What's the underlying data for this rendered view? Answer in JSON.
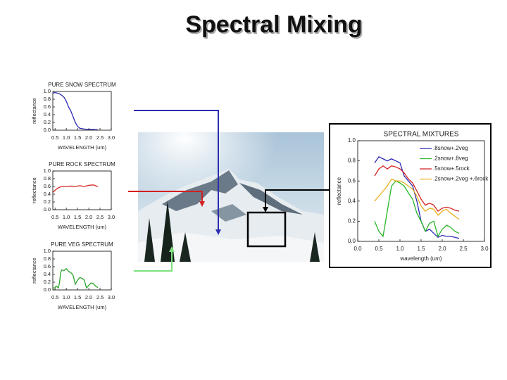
{
  "title": "Spectral Mixing",
  "chart_data": [
    {
      "type": "line",
      "title": "PURE SNOW SPECTRUM",
      "y_label": "reflectance",
      "x_label": "WAVELENGTH (um)",
      "x": [
        0.4,
        0.5,
        0.6,
        0.7,
        0.8,
        0.9,
        1.0,
        1.1,
        1.2,
        1.3,
        1.4,
        1.5,
        1.6,
        1.8,
        2.0,
        2.2,
        2.4
      ],
      "values": [
        0.96,
        0.97,
        0.96,
        0.94,
        0.9,
        0.85,
        0.75,
        0.6,
        0.5,
        0.35,
        0.2,
        0.1,
        0.05,
        0.03,
        0.02,
        0.02,
        0.01
      ],
      "color": "#2b2bb0",
      "xlim": [
        0.4,
        3.0
      ],
      "xticks": [
        0.5,
        {
          "value": 1.0,
          "label": "1.0"
        },
        1.5,
        {
          "value": 2.0,
          "label": "2.0"
        },
        2.5,
        {
          "value": 3.0,
          "label": "3.0"
        }
      ],
      "ylim": [
        0.0,
        1.0
      ],
      "yticks": [
        {
          "value": 0.0,
          "label": "0.0"
        },
        0.2,
        0.4,
        0.6,
        0.8,
        {
          "value": 1.0,
          "label": "1.0"
        }
      ]
    },
    {
      "type": "line",
      "title": "PURE ROCK SPECTRUM",
      "y_label": "reflectance",
      "x_label": "WAVELENGTH (um)",
      "x": [
        0.4,
        0.5,
        0.6,
        0.7,
        0.8,
        1.0,
        1.2,
        1.4,
        1.6,
        1.8,
        2.0,
        2.2,
        2.4
      ],
      "values": [
        0.45,
        0.5,
        0.55,
        0.58,
        0.6,
        0.6,
        0.61,
        0.6,
        0.62,
        0.6,
        0.63,
        0.64,
        0.6
      ],
      "color": "#d42020",
      "xlim": [
        0.4,
        3.0
      ],
      "xticks": [
        0.5,
        {
          "value": 1.0,
          "label": "1.0"
        },
        1.5,
        {
          "value": 2.0,
          "label": "2.0"
        },
        2.5,
        {
          "value": 3.0,
          "label": "3.0"
        }
      ],
      "ylim": [
        0.0,
        1.0
      ],
      "yticks": [
        {
          "value": 0.0,
          "label": "0.0"
        },
        0.2,
        0.4,
        0.6,
        0.8,
        {
          "value": 1.0,
          "label": "1.0"
        }
      ]
    },
    {
      "type": "line",
      "title": "PURE VEG SPECTRUM",
      "y_label": "reflectance",
      "x_label": "WAVELENGTH (um)",
      "x": [
        0.4,
        0.5,
        0.55,
        0.65,
        0.7,
        0.75,
        0.8,
        0.9,
        1.0,
        1.1,
        1.2,
        1.3,
        1.4,
        1.5,
        1.6,
        1.7,
        1.8,
        1.9,
        2.0,
        2.1,
        2.2,
        2.3,
        2.4
      ],
      "values": [
        0.04,
        0.06,
        0.1,
        0.05,
        0.2,
        0.45,
        0.52,
        0.5,
        0.55,
        0.48,
        0.45,
        0.38,
        0.15,
        0.25,
        0.32,
        0.3,
        0.25,
        0.05,
        0.12,
        0.18,
        0.16,
        0.1,
        0.06
      ],
      "color": "#2aa52a",
      "xlim": [
        0.4,
        3.0
      ],
      "xticks": [
        0.5,
        {
          "value": 1.0,
          "label": "1.0"
        },
        1.5,
        {
          "value": 2.0,
          "label": "2.0"
        },
        2.5,
        {
          "value": 3.0,
          "label": "3.0"
        }
      ],
      "ylim": [
        0.0,
        1.0
      ],
      "yticks": [
        {
          "value": 0.0,
          "label": "0.0"
        },
        0.2,
        0.4,
        0.6,
        0.8,
        {
          "value": 1.0,
          "label": "1.0"
        }
      ]
    },
    {
      "type": "line",
      "title": "SPECTRAL MIXTURES",
      "y_label": "reflectance",
      "x_label": "wavelength (um)",
      "x": [
        0.4,
        0.5,
        0.6,
        0.7,
        0.8,
        0.9,
        1.0,
        1.1,
        1.2,
        1.3,
        1.4,
        1.5,
        1.6,
        1.7,
        1.8,
        1.9,
        2.0,
        2.1,
        2.2,
        2.3,
        2.4
      ],
      "series": [
        {
          "name": ".8snow+.2veg",
          "color": "#2b2bb0",
          "values": [
            0.78,
            0.84,
            0.82,
            0.8,
            0.82,
            0.8,
            0.78,
            0.65,
            0.6,
            0.55,
            0.4,
            0.2,
            0.1,
            0.12,
            0.08,
            0.04,
            0.06,
            0.05,
            0.05,
            0.04,
            0.03
          ]
        },
        {
          "name": ".2snow+.8veg",
          "color": "#2ab52a",
          "values": [
            0.2,
            0.1,
            0.05,
            0.3,
            0.55,
            0.6,
            0.58,
            0.55,
            0.48,
            0.42,
            0.28,
            0.2,
            0.1,
            0.18,
            0.2,
            0.05,
            0.12,
            0.16,
            0.14,
            0.1,
            0.08
          ]
        },
        {
          "name": ".5snow+.5rock",
          "color": "#d42020",
          "values": [
            0.65,
            0.72,
            0.75,
            0.72,
            0.75,
            0.74,
            0.72,
            0.68,
            0.62,
            0.58,
            0.5,
            0.42,
            0.36,
            0.38,
            0.36,
            0.3,
            0.33,
            0.34,
            0.33,
            0.31,
            0.3
          ]
        },
        {
          "name": ".2snow+.2veg +.6rock",
          "color": "#e8b020",
          "values": [
            0.4,
            0.45,
            0.5,
            0.55,
            0.62,
            0.6,
            0.6,
            0.58,
            0.55,
            0.52,
            0.45,
            0.35,
            0.3,
            0.33,
            0.32,
            0.26,
            0.3,
            0.32,
            0.28,
            0.25,
            0.22
          ]
        }
      ],
      "xlim": [
        0.0,
        3.0
      ],
      "xticks": [
        {
          "value": 0.0,
          "label": "0.0"
        },
        0.5,
        {
          "value": 1.0,
          "label": "1.0"
        },
        1.5,
        {
          "value": 2.0,
          "label": "2.0"
        },
        2.5,
        {
          "value": 3.0,
          "label": "3.0"
        }
      ],
      "ylim": [
        0.0,
        1.0
      ],
      "yticks": [
        {
          "value": 0.0,
          "label": "0.0"
        },
        0.2,
        0.4,
        0.6,
        0.8,
        {
          "value": 1.0,
          "label": "1.0"
        }
      ]
    }
  ]
}
